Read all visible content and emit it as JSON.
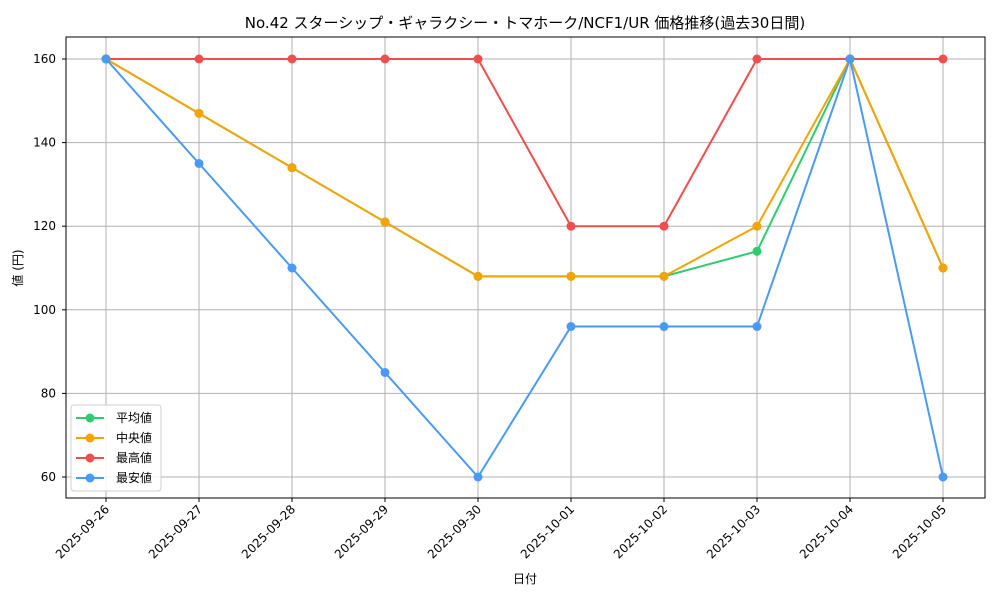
{
  "chart_data": {
    "type": "line",
    "title": "No.42 スターシップ・ギャラクシー・トマホーク/NCF1/UR 価格推移(過去30日間)",
    "xlabel": "日付",
    "ylabel": "値 (円)",
    "categories": [
      "2025-09-26",
      "2025-09-27",
      "2025-09-28",
      "2025-09-29",
      "2025-09-30",
      "2025-10-01",
      "2025-10-02",
      "2025-10-03",
      "2025-10-04",
      "2025-10-05"
    ],
    "yticks": [
      60,
      80,
      100,
      120,
      140,
      160
    ],
    "ylim": [
      55,
      165
    ],
    "grid": true,
    "legend_position": "lower left",
    "series": [
      {
        "name": "平均値",
        "color": "#2ecc71",
        "values": [
          160,
          147,
          134,
          121,
          108,
          108,
          108,
          114,
          160,
          110
        ]
      },
      {
        "name": "中央値",
        "color": "#f5a300",
        "values": [
          160,
          147,
          134,
          121,
          108,
          108,
          108,
          120,
          160,
          110
        ]
      },
      {
        "name": "最高値",
        "color": "#f04e4e",
        "values": [
          160,
          160,
          160,
          160,
          160,
          120,
          120,
          160,
          160,
          160
        ]
      },
      {
        "name": "最安値",
        "color": "#4a9af5",
        "values": [
          160,
          135,
          110,
          85,
          60,
          96,
          96,
          96,
          160,
          60
        ]
      }
    ]
  }
}
